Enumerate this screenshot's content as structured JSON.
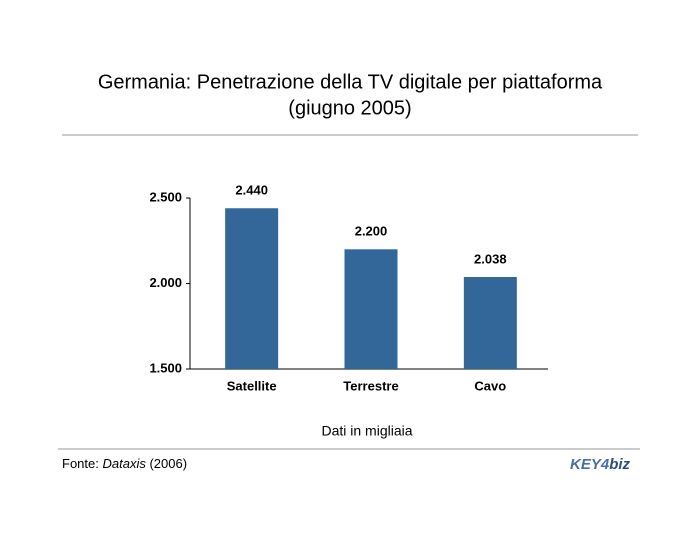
{
  "chart_data": {
    "type": "bar",
    "title": [
      "Germania: Penetrazione della TV digitale per piattaforma",
      "(giugno 2005)"
    ],
    "categories": [
      "Satellite",
      "Terrestre",
      "Cavo"
    ],
    "values": [
      2440,
      2200,
      2038
    ],
    "value_labels": [
      "2.440",
      "2.200",
      "2.038"
    ],
    "color": "#336699",
    "ylim": [
      1500,
      2500
    ],
    "yticks": [
      {
        "value": 1500,
        "label": "1.500"
      },
      {
        "value": 2000,
        "label": "2.000"
      },
      {
        "value": 2500,
        "label": "2.500"
      }
    ],
    "grid": false,
    "x_label": "Dati in migliaia",
    "source": {
      "prefix": "Fonte:",
      "name": "Dataxis",
      "suffix": "(2006)"
    },
    "logo": {
      "key": "KEY",
      "num": "4",
      "biz": "biz"
    }
  }
}
